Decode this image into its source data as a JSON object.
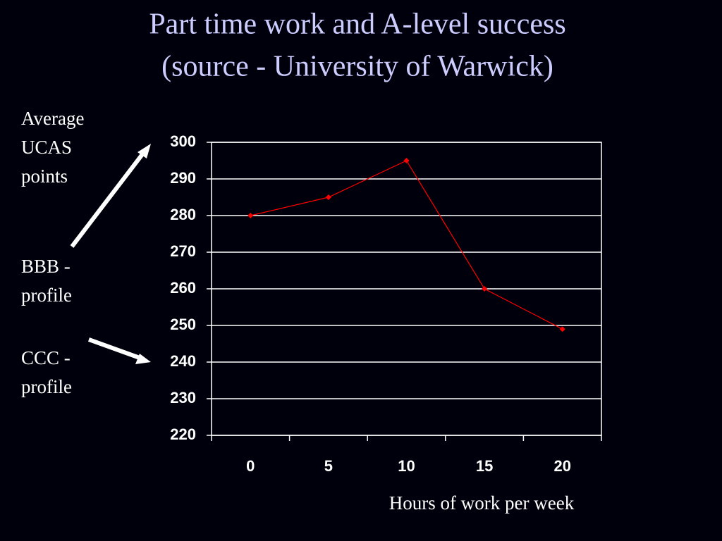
{
  "chart_data": {
    "type": "line",
    "title": "Part time work and A-level success",
    "subtitle": "(source - University of Warwick)",
    "y_label": "Average UCAS points",
    "x_label": "Hours of work per week",
    "annotations": [
      "BBB - profile",
      "CCC - profile"
    ],
    "categories": [
      "0",
      "5",
      "10",
      "15",
      "20"
    ],
    "series": [
      {
        "name": "Average UCAS points",
        "color": "#ff0000",
        "values": [
          280,
          285,
          295,
          260,
          249
        ]
      }
    ],
    "ylim": [
      220,
      300
    ],
    "yticks": [
      220,
      230,
      240,
      250,
      260,
      270,
      280,
      290,
      300
    ],
    "grid": true
  }
}
